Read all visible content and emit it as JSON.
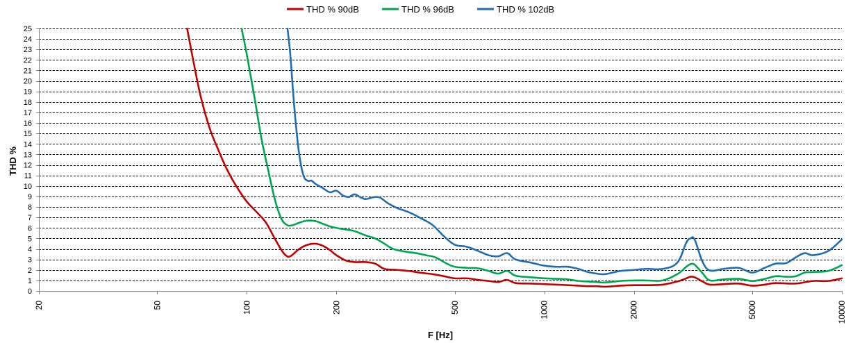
{
  "chart_data": {
    "type": "line",
    "xlabel": "F [Hz]",
    "ylabel": "THD %",
    "x_scale": "log",
    "xlim": [
      20,
      10000
    ],
    "ylim": [
      0,
      25
    ],
    "x_ticks": [
      20,
      50,
      100,
      200,
      500,
      1000,
      2000,
      5000,
      10000
    ],
    "x_tick_labels": [
      "20",
      "50",
      "100",
      "200",
      "500",
      "1000",
      "2000",
      "5000",
      "10000"
    ],
    "y_ticks": [
      0,
      1,
      2,
      3,
      4,
      5,
      6,
      7,
      8,
      9,
      10,
      11,
      12,
      13,
      14,
      15,
      16,
      17,
      18,
      19,
      20,
      21,
      22,
      23,
      24,
      25
    ],
    "y_tick_labels": [
      "0",
      "1",
      "2",
      "3",
      "4",
      "5",
      "6",
      "7",
      "8",
      "9",
      "10",
      "11",
      "12",
      "13",
      "14",
      "15",
      "16",
      "17",
      "18",
      "19",
      "20",
      "21",
      "22",
      "23",
      "24",
      "25"
    ],
    "grid": "horizontal dashed",
    "legend_position": "top",
    "series": [
      {
        "name": "THD % 90dB",
        "color": "#C00000",
        "x": [
          63,
          66,
          70,
          75,
          80,
          86,
          93,
          100,
          108,
          116,
          123,
          130,
          135,
          140,
          150,
          160,
          170,
          180,
          190,
          200,
          215,
          230,
          250,
          270,
          290,
          320,
          350,
          380,
          420,
          460,
          500,
          550,
          600,
          650,
          700,
          750,
          800,
          900,
          1000,
          1100,
          1200,
          1300,
          1400,
          1500,
          1600,
          1800,
          2000,
          2200,
          2500,
          2800,
          3000,
          3100,
          3200,
          3400,
          3600,
          4000,
          4500,
          5000,
          5500,
          6000,
          7000,
          8000,
          9000,
          10000
        ],
        "values": [
          25,
          22,
          18.5,
          15.5,
          13.5,
          11.5,
          9.8,
          8.5,
          7.5,
          6.5,
          5.2,
          4,
          3.4,
          3.3,
          4,
          4.4,
          4.5,
          4.3,
          3.9,
          3.4,
          2.9,
          2.75,
          2.75,
          2.6,
          2.1,
          2,
          1.9,
          1.75,
          1.6,
          1.4,
          1.2,
          1.2,
          1.05,
          0.95,
          0.85,
          1.05,
          0.75,
          0.7,
          0.65,
          0.6,
          0.55,
          0.5,
          0.45,
          0.45,
          0.4,
          0.5,
          0.55,
          0.55,
          0.6,
          0.9,
          1.2,
          1.35,
          1.3,
          0.9,
          0.6,
          0.65,
          0.7,
          0.5,
          0.6,
          0.75,
          0.7,
          0.95,
          0.95,
          1.2
        ]
      },
      {
        "name": "THD % 96dB",
        "color": "#00A550",
        "x": [
          96,
          100,
          106,
          112,
          118,
          124,
          130,
          136,
          142,
          150,
          160,
          170,
          180,
          190,
          200,
          215,
          230,
          250,
          270,
          290,
          310,
          340,
          370,
          400,
          430,
          470,
          500,
          550,
          600,
          650,
          700,
          750,
          800,
          900,
          1000,
          1100,
          1200,
          1300,
          1400,
          1500,
          1600,
          1800,
          2000,
          2200,
          2500,
          2800,
          3000,
          3100,
          3200,
          3400,
          3600,
          4000,
          4500,
          5000,
          5500,
          6000,
          6500,
          7000,
          7500,
          8000,
          9000,
          10000
        ],
        "values": [
          25,
          22.5,
          18.5,
          14.5,
          11.5,
          8.8,
          7,
          6.3,
          6.25,
          6.5,
          6.7,
          6.65,
          6.4,
          6.15,
          6,
          5.85,
          5.7,
          5.3,
          5,
          4.5,
          4,
          3.75,
          3.6,
          3.4,
          3.2,
          2.6,
          2.3,
          2.2,
          2.15,
          1.9,
          1.65,
          1.9,
          1.45,
          1.3,
          1.2,
          1.15,
          1.1,
          0.95,
          0.9,
          0.85,
          0.8,
          0.95,
          1,
          1,
          1,
          1.6,
          2.3,
          2.55,
          2.5,
          1.7,
          1,
          1.1,
          1.15,
          0.95,
          1.15,
          1.4,
          1.35,
          1.4,
          1.75,
          1.8,
          1.9,
          2.45
        ]
      },
      {
        "name": "THD % 102dB",
        "color": "#1F6EB4",
        "x": [
          137,
          140,
          143,
          146,
          150,
          155,
          160,
          165,
          170,
          180,
          190,
          200,
          210,
          220,
          230,
          240,
          250,
          260,
          270,
          280,
          290,
          300,
          320,
          350,
          380,
          420,
          460,
          500,
          550,
          600,
          650,
          700,
          750,
          800,
          900,
          1000,
          1100,
          1200,
          1300,
          1400,
          1500,
          1600,
          1800,
          2000,
          2200,
          2500,
          2800,
          3000,
          3100,
          3200,
          3400,
          3600,
          4000,
          4500,
          5000,
          5500,
          6000,
          6500,
          7000,
          7500,
          8000,
          9000,
          10000
        ],
        "values": [
          25,
          22.5,
          19,
          16,
          13,
          11,
          10.5,
          10.5,
          10.2,
          9.8,
          9.4,
          9.55,
          9.1,
          8.95,
          9.2,
          8.95,
          8.75,
          8.85,
          8.95,
          8.9,
          8.6,
          8.3,
          7.9,
          7.5,
          7,
          6.3,
          5.2,
          4.4,
          4.2,
          3.8,
          3.4,
          3.3,
          3.6,
          3,
          2.7,
          2.4,
          2.3,
          2.3,
          2.1,
          1.8,
          1.65,
          1.6,
          1.9,
          2,
          2.1,
          2.1,
          2.7,
          4.6,
          5,
          4.9,
          2.8,
          1.95,
          2.1,
          2.2,
          1.75,
          2.2,
          2.6,
          2.65,
          3.2,
          3.6,
          3.4,
          3.8,
          4.9
        ]
      }
    ]
  }
}
